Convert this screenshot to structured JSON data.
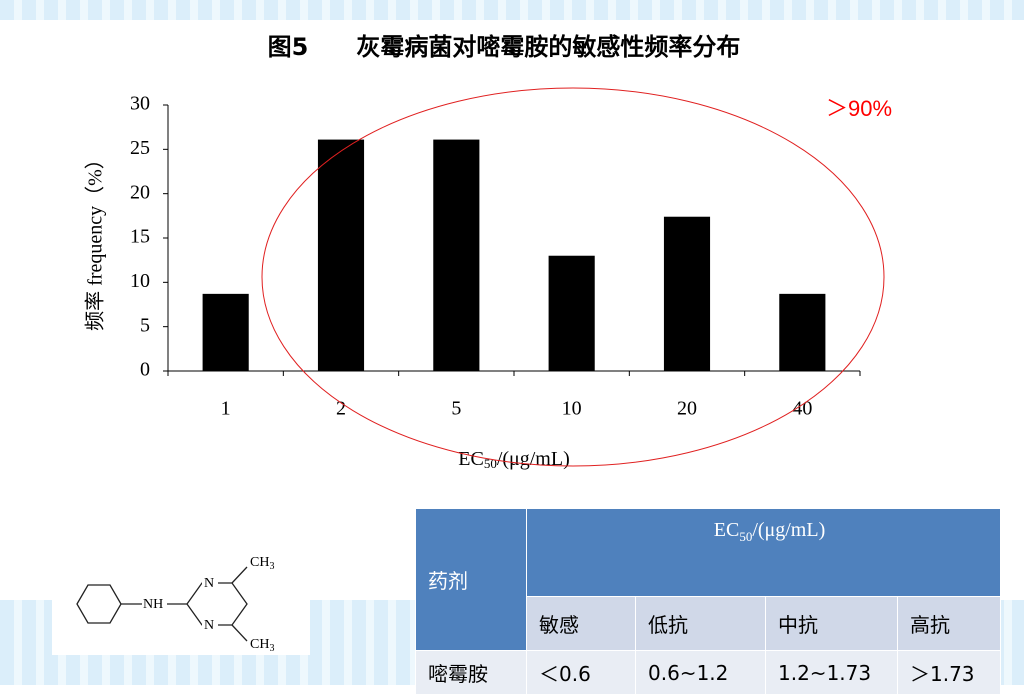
{
  "chart_data": {
    "type": "bar",
    "title": "图5　　灰霉病菌对嘧霉胺的敏感性频率分布",
    "y_label": "频率 frequency（%）",
    "x_label": [
      "EC",
      "50",
      "/(μg/mL)"
    ],
    "categories": [
      "1",
      "2",
      "5",
      "10",
      "20",
      "40"
    ],
    "values": [
      8.7,
      26.1,
      26.1,
      13.0,
      17.4,
      8.7
    ],
    "color": "#000000",
    "ylim": [
      0,
      30
    ],
    "yticks": [
      0,
      5,
      10,
      15,
      20,
      25,
      30
    ],
    "annotation": "＞90%",
    "annotation_color": "#ff0000"
  },
  "table": {
    "header": [
      "药剂",
      [
        "EC",
        "50",
        "/(μg/mL)"
      ]
    ],
    "subheader": [
      "敏感",
      "低抗",
      "中抗",
      "高抗"
    ],
    "rows": [
      [
        "嘧霉胺",
        "＜0.6",
        "0.6~1.2",
        "1.2~1.73",
        "＞1.73"
      ]
    ]
  },
  "structure": {
    "labels": [
      [
        "CH",
        "3"
      ],
      "NH",
      "N",
      "N",
      [
        "CH",
        "3"
      ]
    ]
  }
}
